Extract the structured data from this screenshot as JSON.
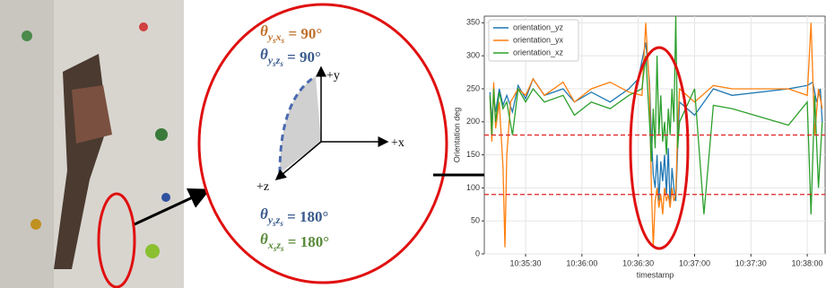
{
  "diagram": {
    "annotations": [
      {
        "symbol": "θ",
        "sub": [
          [
            "y",
            "s"
          ],
          [
            "x",
            "s"
          ]
        ],
        "eq": " = 90°",
        "color": "#c0702a"
      },
      {
        "symbol": "θ",
        "sub": [
          [
            "y",
            "s"
          ],
          [
            "z",
            "s"
          ]
        ],
        "eq": " = 90°",
        "color": "#3a5a8c"
      },
      {
        "symbol": "θ",
        "sub": [
          [
            "y",
            "s"
          ],
          [
            "z",
            "s"
          ]
        ],
        "eq": " = 180°",
        "color": "#3a5a8c"
      },
      {
        "symbol": "θ",
        "sub": [
          [
            "x",
            "s"
          ],
          [
            "z",
            "s"
          ]
        ],
        "eq": " = 180°",
        "color": "#5a8a3a"
      }
    ],
    "axes": {
      "y": "+y",
      "x": "+x",
      "z": "+z"
    }
  },
  "chart_data": {
    "type": "line",
    "xlabel": "timestamp",
    "ylabel": "Orientation deg",
    "xlim": [
      "10:35:08",
      "10:38:10"
    ],
    "xticks": [
      "10:35:30",
      "10:36:00",
      "10:36:30",
      "10:37:00",
      "10:37:30",
      "10:38:00"
    ],
    "ylim": [
      0,
      360
    ],
    "yticks": [
      0,
      50,
      100,
      150,
      200,
      250,
      300,
      350
    ],
    "grid": true,
    "legend": "upper left",
    "hlines": [
      180,
      90
    ],
    "hline_color": "#e02020",
    "series": [
      {
        "name": "orientation_yz",
        "color": "#1f77b4",
        "x": [
          "10:35:11",
          "10:35:12",
          "10:35:13",
          "10:35:14",
          "10:35:16",
          "10:35:18",
          "10:35:20",
          "10:35:23",
          "10:35:26",
          "10:35:30",
          "10:35:34",
          "10:35:40",
          "10:35:50",
          "10:35:56",
          "10:36:05",
          "10:36:15",
          "10:36:25",
          "10:36:30",
          "10:36:34",
          "10:36:36",
          "10:36:37",
          "10:36:38",
          "10:36:39",
          "10:36:40",
          "10:36:41",
          "10:36:42",
          "10:36:43",
          "10:36:44",
          "10:36:45",
          "10:36:46",
          "10:36:47",
          "10:36:48",
          "10:36:49",
          "10:36:50",
          "10:36:51",
          "10:36:52",
          "10:37:00",
          "10:37:10",
          "10:37:20",
          "10:37:50",
          "10:38:00",
          "10:38:03",
          "10:38:05",
          "10:38:07",
          "10:38:08"
        ],
        "values": [
          245,
          200,
          240,
          215,
          250,
          225,
          240,
          215,
          255,
          235,
          265,
          240,
          250,
          230,
          245,
          230,
          250,
          265,
          320,
          260,
          180,
          120,
          100,
          150,
          80,
          140,
          110,
          150,
          90,
          160,
          70,
          130,
          100,
          80,
          160,
          230,
          210,
          250,
          240,
          250,
          255,
          260,
          230,
          250,
          200
        ]
      },
      {
        "name": "orientation_yx",
        "color": "#ff7f0e",
        "x": [
          "10:35:11",
          "10:35:12",
          "10:35:13",
          "10:35:14",
          "10:35:16",
          "10:35:18",
          "10:35:19",
          "10:35:20",
          "10:35:22",
          "10:35:26",
          "10:35:30",
          "10:35:34",
          "10:35:40",
          "10:35:50",
          "10:35:56",
          "10:36:05",
          "10:36:15",
          "10:36:25",
          "10:36:32",
          "10:36:34",
          "10:36:36",
          "10:36:37",
          "10:36:38",
          "10:36:39",
          "10:36:40",
          "10:36:41",
          "10:36:42",
          "10:36:43",
          "10:36:44",
          "10:36:45",
          "10:36:46",
          "10:36:47",
          "10:36:48",
          "10:36:49",
          "10:36:50",
          "10:36:51",
          "10:36:52",
          "10:37:00",
          "10:37:10",
          "10:37:20",
          "10:37:50",
          "10:38:00",
          "10:38:02",
          "10:38:04",
          "10:38:06",
          "10:38:08"
        ],
        "values": [
          240,
          170,
          260,
          190,
          230,
          130,
          10,
          150,
          230,
          250,
          240,
          265,
          240,
          260,
          230,
          250,
          260,
          245,
          240,
          350,
          250,
          100,
          10,
          80,
          100,
          70,
          90,
          60,
          100,
          80,
          90,
          70,
          100,
          80,
          90,
          190,
          250,
          230,
          255,
          250,
          250,
          240,
          350,
          180,
          250,
          220
        ]
      },
      {
        "name": "orientation_xz",
        "color": "#2ca02c",
        "x": [
          "10:35:11",
          "10:35:12",
          "10:35:13",
          "10:35:14",
          "10:35:16",
          "10:35:18",
          "10:35:20",
          "10:35:23",
          "10:35:26",
          "10:35:30",
          "10:35:34",
          "10:35:40",
          "10:35:50",
          "10:35:56",
          "10:36:05",
          "10:36:15",
          "10:36:25",
          "10:36:32",
          "10:36:34",
          "10:36:36",
          "10:36:37",
          "10:36:38",
          "10:36:39",
          "10:36:40",
          "10:36:41",
          "10:36:42",
          "10:36:43",
          "10:36:44",
          "10:36:45",
          "10:36:46",
          "10:36:47",
          "10:36:48",
          "10:36:49",
          "10:36:50",
          "10:36:51",
          "10:36:52",
          "10:37:00",
          "10:37:05",
          "10:37:10",
          "10:37:20",
          "10:37:50",
          "10:38:00",
          "10:38:02",
          "10:38:04",
          "10:38:06",
          "10:38:08"
        ],
        "values": [
          240,
          180,
          250,
          200,
          245,
          220,
          230,
          180,
          250,
          230,
          250,
          230,
          240,
          210,
          230,
          220,
          240,
          250,
          300,
          200,
          140,
          220,
          160,
          300,
          180,
          240,
          170,
          200,
          150,
          220,
          180,
          250,
          200,
          360,
          160,
          200,
          250,
          60,
          225,
          220,
          195,
          230,
          60,
          240,
          100,
          200
        ]
      }
    ]
  }
}
